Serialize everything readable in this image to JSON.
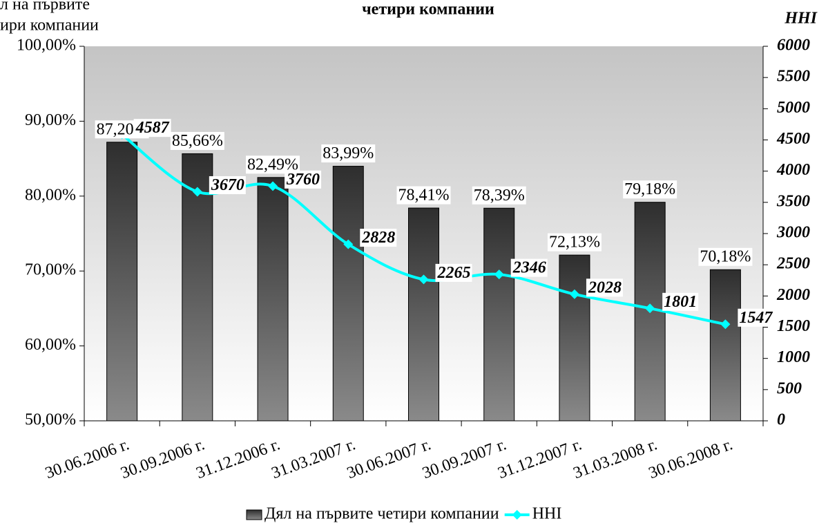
{
  "chart_data": {
    "type": "bar",
    "title": "четири компании",
    "y_label": [
      "л на първите",
      "ири компании"
    ],
    "y2_label": "HHI",
    "categories": [
      "30.06.2006 г.",
      "30.09.2006 г.",
      "31.12.2006 г.",
      "31.03.2007 г.",
      "30.06.2007 г.",
      "30.09.2007 г.",
      "31.12.2007 г.",
      "31.03.2008 г.",
      "30.06.2008 г."
    ],
    "series": [
      {
        "name": "Дял на първите четири компании",
        "type": "bar",
        "color": "#3a3a3a",
        "values": [
          87.2,
          85.66,
          82.49,
          83.99,
          78.41,
          78.39,
          72.13,
          79.18,
          70.18
        ],
        "value_labels": [
          "87,20%",
          "85,66%",
          "82,49%",
          "83,99%",
          "78,41%",
          "78,39%",
          "72,13%",
          "79,18%",
          "70,18%"
        ]
      },
      {
        "name": "HHI",
        "type": "line",
        "axis": "y2",
        "color": "#00ffff",
        "values": [
          4587,
          3670,
          3760,
          2828,
          2265,
          2346,
          2028,
          1801,
          1547
        ]
      }
    ],
    "ylim": [
      50,
      100
    ],
    "yticks": [
      {
        "value": 50,
        "label": "50,00%"
      },
      {
        "value": 60,
        "label": "60,00%"
      },
      {
        "value": 70,
        "label": "70,00%"
      },
      {
        "value": 80,
        "label": "80,00%"
      },
      {
        "value": 90,
        "label": "90,00%"
      },
      {
        "value": 100,
        "label": "100,00%"
      }
    ],
    "y2lim": [
      0,
      6000
    ],
    "y2ticks": [
      0,
      500,
      1000,
      1500,
      2000,
      2500,
      3000,
      3500,
      4000,
      4500,
      5000,
      5500,
      6000
    ],
    "legend": "bottom"
  }
}
